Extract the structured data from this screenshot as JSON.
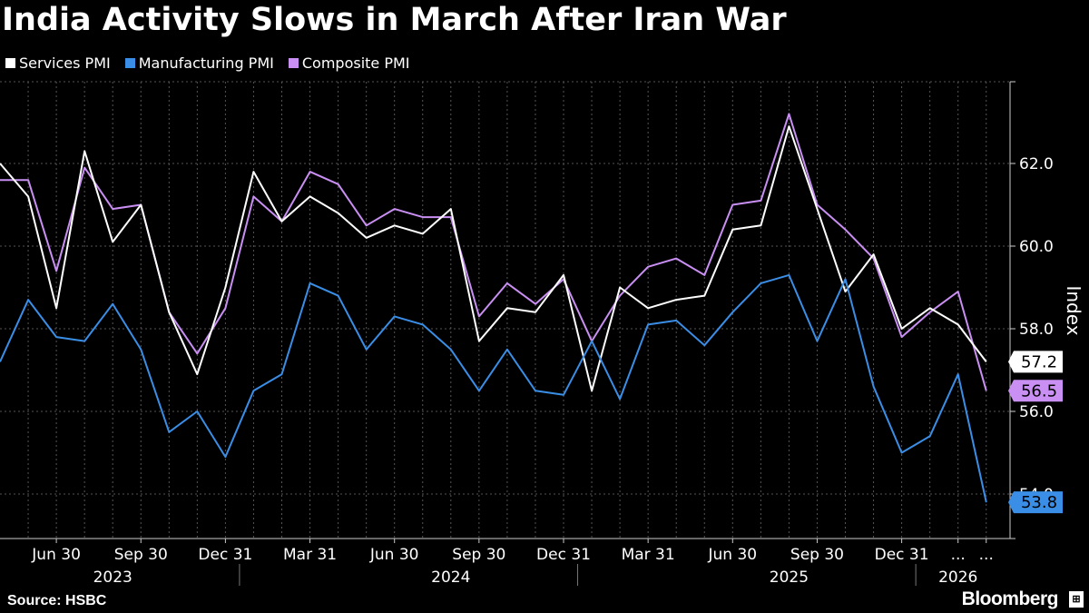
{
  "chart_data": {
    "type": "line",
    "title": "India Activity Slows in March After Iran War",
    "ylabel": "Index",
    "ylim": [
      53,
      64
    ],
    "yticks": [
      54.0,
      56.0,
      58.0,
      60.0,
      62.0
    ],
    "ytick_labels": [
      "54.0",
      "56.0",
      "58.0",
      "60.0",
      "62.0"
    ],
    "grid": true,
    "legend_position": "top-left",
    "x_month_labels": [
      "Jun 30",
      "Sep 30",
      "Dec 31",
      "Mar 31",
      "Jun 30",
      "Sep 30",
      "Dec 31",
      "Mar 31",
      "Jun 30",
      "Sep 30",
      "Dec 31",
      "...",
      "..."
    ],
    "x_year_labels": [
      "2023",
      "2024",
      "2025",
      "2026"
    ],
    "x": [
      "2023-04",
      "2023-05",
      "2023-06",
      "2023-07",
      "2023-08",
      "2023-09",
      "2023-10",
      "2023-11",
      "2023-12",
      "2024-01",
      "2024-02",
      "2024-03",
      "2024-04",
      "2024-05",
      "2024-06",
      "2024-07",
      "2024-08",
      "2024-09",
      "2024-10",
      "2024-11",
      "2024-12",
      "2025-01",
      "2025-02",
      "2025-03",
      "2025-04",
      "2025-05",
      "2025-06",
      "2025-07",
      "2025-08",
      "2025-09",
      "2025-10",
      "2025-11",
      "2025-12",
      "2026-01",
      "2026-02",
      "2026-03"
    ],
    "series": [
      {
        "name": "Services PMI",
        "color": "#ffffff",
        "values": [
          62.0,
          61.2,
          58.5,
          62.3,
          60.1,
          61.0,
          58.4,
          56.9,
          59.0,
          61.8,
          60.6,
          61.2,
          60.8,
          60.2,
          60.5,
          60.3,
          60.9,
          57.7,
          58.5,
          58.4,
          59.3,
          56.5,
          59.0,
          58.5,
          58.7,
          58.8,
          60.4,
          60.5,
          62.9,
          60.9,
          58.9,
          59.8,
          58.0,
          58.5,
          58.1,
          57.2
        ],
        "end_label": "57.2"
      },
      {
        "name": "Manufacturing PMI",
        "color": "#3a8ee6",
        "values": [
          57.2,
          58.7,
          57.8,
          57.7,
          58.6,
          57.5,
          55.5,
          56.0,
          54.9,
          56.5,
          56.9,
          59.1,
          58.8,
          57.5,
          58.3,
          58.1,
          57.5,
          56.5,
          57.5,
          56.5,
          56.4,
          57.7,
          56.3,
          58.1,
          58.2,
          57.6,
          58.4,
          59.1,
          59.3,
          57.7,
          59.2,
          56.6,
          55.0,
          55.4,
          56.9,
          53.8
        ],
        "end_label": "53.8"
      },
      {
        "name": "Composite PMI",
        "color": "#c98ff3",
        "values": [
          61.6,
          61.6,
          59.4,
          61.9,
          60.9,
          61.0,
          58.4,
          57.4,
          58.5,
          61.2,
          60.6,
          61.8,
          61.5,
          60.5,
          60.9,
          60.7,
          60.7,
          58.3,
          59.1,
          58.6,
          59.2,
          57.7,
          58.8,
          59.5,
          59.7,
          59.3,
          61.0,
          61.1,
          63.2,
          61.0,
          60.4,
          59.7,
          57.8,
          58.4,
          58.9,
          56.5
        ],
        "end_label": "56.5"
      }
    ]
  },
  "legend": {
    "items": [
      {
        "label": "Services PMI",
        "color": "#ffffff"
      },
      {
        "label": "Manufacturing PMI",
        "color": "#3a8ee6"
      },
      {
        "label": "Composite PMI",
        "color": "#c98ff3"
      }
    ]
  },
  "footer": {
    "source": "Source: HSBC",
    "brand": "Bloomberg"
  }
}
